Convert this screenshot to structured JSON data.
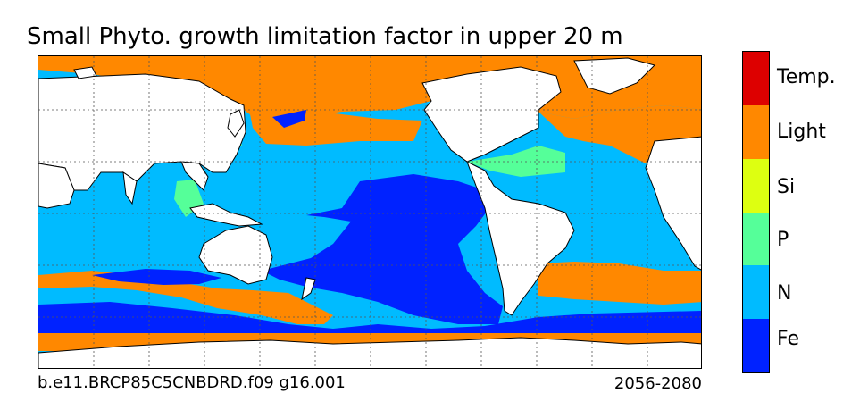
{
  "title": "Small Phyto. growth limitation factor in upper 20 m",
  "caption_left": "b.e11.BRCP85C5CNBDRD.f09 g16.001",
  "caption_right": "2056-2080",
  "legend": {
    "categories": [
      {
        "label": "Fe",
        "color": "#0022ff"
      },
      {
        "label": "N",
        "color": "#00bbff"
      },
      {
        "label": "P",
        "color": "#55ff99"
      },
      {
        "label": "Si",
        "color": "#ddff11"
      },
      {
        "label": "Light",
        "color": "#ff8800"
      },
      {
        "label": "Temp.",
        "color": "#dd0000"
      }
    ]
  },
  "map": {
    "land_color": "#ffffff",
    "coastline_color": "#000000",
    "gridlines": "dotted",
    "projection": "global, Pacific-centered"
  }
}
